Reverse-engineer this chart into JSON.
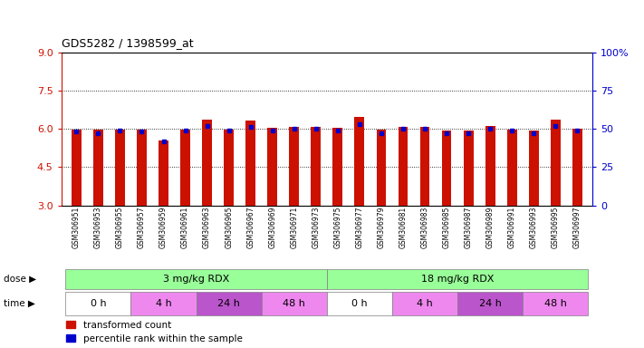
{
  "title": "GDS5282 / 1398599_at",
  "samples": [
    "GSM306951",
    "GSM306953",
    "GSM306955",
    "GSM306957",
    "GSM306959",
    "GSM306961",
    "GSM306963",
    "GSM306965",
    "GSM306967",
    "GSM306969",
    "GSM306971",
    "GSM306973",
    "GSM306975",
    "GSM306977",
    "GSM306979",
    "GSM306981",
    "GSM306983",
    "GSM306985",
    "GSM306987",
    "GSM306989",
    "GSM306991",
    "GSM306993",
    "GSM306995",
    "GSM306997"
  ],
  "transformed_count": [
    5.95,
    5.95,
    5.98,
    5.97,
    5.55,
    5.98,
    6.35,
    5.98,
    6.32,
    6.05,
    6.08,
    6.08,
    6.05,
    6.45,
    5.95,
    6.08,
    6.08,
    5.92,
    5.92,
    6.1,
    5.98,
    5.92,
    6.35,
    6.02
  ],
  "percentile_rank": [
    48,
    47,
    49,
    48,
    42,
    49,
    52,
    49,
    51,
    49,
    50,
    50,
    49,
    53,
    47,
    50,
    50,
    47,
    47,
    50,
    49,
    47,
    52,
    49
  ],
  "bar_color": "#cc1100",
  "dot_color": "#0000cc",
  "y_min": 3,
  "y_max": 9,
  "y_ticks": [
    3,
    4.5,
    6,
    7.5,
    9
  ],
  "y2_ticks": [
    0,
    25,
    50,
    75,
    100
  ],
  "grid_values": [
    4.5,
    6.0,
    7.5
  ],
  "dose_labels": [
    "3 mg/kg RDX",
    "18 mg/kg RDX"
  ],
  "dose_color": "#99ff99",
  "time_labels": [
    "0 h",
    "4 h",
    "24 h",
    "48 h",
    "0 h",
    "4 h",
    "24 h",
    "48 h"
  ],
  "time_colors": [
    "#ffffff",
    "#ee88ee",
    "#bb55cc",
    "#ee88ee",
    "#ffffff",
    "#ee88ee",
    "#bb55cc",
    "#ee88ee"
  ],
  "bg_color": "#ffffff",
  "axis_color_left": "#cc1100",
  "axis_color_right": "#0000cc",
  "bar_width": 0.45
}
